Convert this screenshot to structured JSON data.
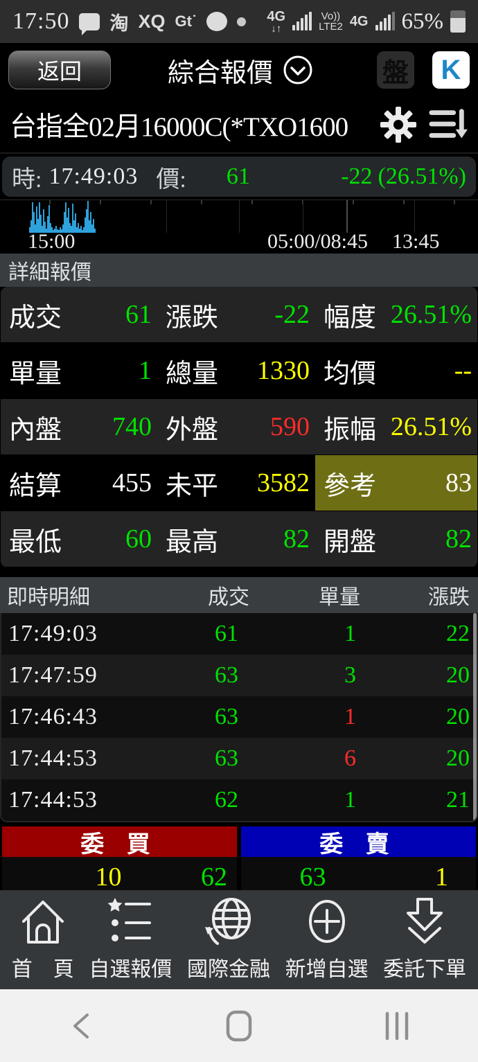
{
  "colors": {
    "green": "#00e300",
    "yellow": "#ffff00",
    "red": "#ff2b2b",
    "white": "#ffffff"
  },
  "status_bar": {
    "time": "17:50",
    "icons": [
      "message-bubble",
      "taobao",
      "xq",
      "gt",
      "chat-bubble",
      "notification-dot"
    ],
    "net_left": "4G",
    "net_left_arrows": "↓↑",
    "volte_top": "Vo))",
    "volte_bottom": "LTE2",
    "net_right": "4G",
    "battery_pct": "65%"
  },
  "header": {
    "back_label": "返回",
    "title": "綜合報價",
    "board_label": "盤",
    "k_label": "K"
  },
  "instrument": {
    "name": "台指全02月16000C(*TXO1600"
  },
  "quote_strip": {
    "time_label": "時:",
    "time": "17:49:03",
    "price_label": "價:",
    "price": "61",
    "change": "-22",
    "change_pct": "(26.51%)"
  },
  "chart": {
    "type": "bar",
    "x_labels": [
      "15:00",
      "05:00/08:45",
      "13:45"
    ],
    "bars": [
      8,
      18,
      44,
      30,
      12,
      38,
      20,
      44,
      26,
      10,
      34,
      16,
      6,
      24,
      40,
      14,
      8,
      4,
      6,
      10,
      5,
      4,
      8,
      5,
      12,
      30,
      44,
      22,
      36,
      14,
      10,
      42,
      18,
      28,
      8,
      14,
      6,
      10,
      4,
      8,
      22,
      34,
      46,
      18,
      30,
      12,
      20,
      6
    ],
    "gridlines_pct": [
      34.8,
      50.0,
      63.3,
      72.5,
      86.7
    ],
    "bright_gridline_index": 3,
    "bar_color": "#2da2dc"
  },
  "detail": {
    "title": "詳細報價",
    "rows": [
      {
        "cells": [
          {
            "label": "成交",
            "value": "61",
            "color": "green"
          },
          {
            "label": "漲跌",
            "value": "-22",
            "color": "green"
          },
          {
            "label": "幅度",
            "value": "26.51%",
            "color": "green"
          }
        ]
      },
      {
        "cells": [
          {
            "label": "單量",
            "value": "1",
            "color": "green"
          },
          {
            "label": "總量",
            "value": "1330",
            "color": "yellow"
          },
          {
            "label": "均價",
            "value": "--",
            "color": "yellow"
          }
        ]
      },
      {
        "cells": [
          {
            "label": "內盤",
            "value": "740",
            "color": "green"
          },
          {
            "label": "外盤",
            "value": "590",
            "color": "red"
          },
          {
            "label": "振幅",
            "value": "26.51%",
            "color": "yellow"
          }
        ]
      },
      {
        "cells": [
          {
            "label": "結算",
            "value": "455",
            "color": "white"
          },
          {
            "label": "未平",
            "value": "3582",
            "color": "yellow"
          },
          {
            "label": "參考",
            "value": "83",
            "color": "white",
            "highlight": true
          }
        ]
      },
      {
        "cells": [
          {
            "label": "最低",
            "value": "60",
            "color": "green"
          },
          {
            "label": "最高",
            "value": "82",
            "color": "green"
          },
          {
            "label": "開盤",
            "value": "82",
            "color": "green"
          }
        ]
      }
    ]
  },
  "tape": {
    "title": "即時明細",
    "headers": [
      "成交",
      "單量",
      "漲跌"
    ],
    "rows": [
      {
        "time": "17:49:03",
        "price": "61",
        "price_color": "green",
        "vol": "1",
        "vol_color": "green",
        "chg": "22",
        "chg_color": "green"
      },
      {
        "time": "17:47:59",
        "price": "63",
        "price_color": "green",
        "vol": "3",
        "vol_color": "green",
        "chg": "20",
        "chg_color": "green"
      },
      {
        "time": "17:46:43",
        "price": "63",
        "price_color": "green",
        "vol": "1",
        "vol_color": "red",
        "chg": "20",
        "chg_color": "green"
      },
      {
        "time": "17:44:53",
        "price": "63",
        "price_color": "green",
        "vol": "6",
        "vol_color": "red",
        "chg": "20",
        "chg_color": "green"
      },
      {
        "time": "17:44:53",
        "price": "62",
        "price_color": "green",
        "vol": "1",
        "vol_color": "green",
        "chg": "21",
        "chg_color": "green"
      }
    ]
  },
  "order_book": {
    "bid_title": "委 買",
    "ask_title": "委 賣",
    "bid_header_color": "#9b0000",
    "ask_header_color": "#0000b4",
    "bid_row": {
      "vol": "10",
      "vol_color": "yellow",
      "price": "62",
      "price_color": "green"
    },
    "ask_row": {
      "price": "63",
      "price_color": "green",
      "vol": "1",
      "vol_color": "yellow"
    }
  },
  "bottom_nav": {
    "items": [
      {
        "icon": "home-icon",
        "label": "首　頁"
      },
      {
        "icon": "watchlist-icon",
        "label": "自選報價"
      },
      {
        "icon": "globe-icon",
        "label": "國際金融"
      },
      {
        "icon": "add-circle-icon",
        "label": "新增自選"
      },
      {
        "icon": "order-icon",
        "label": "委託下單"
      }
    ]
  }
}
